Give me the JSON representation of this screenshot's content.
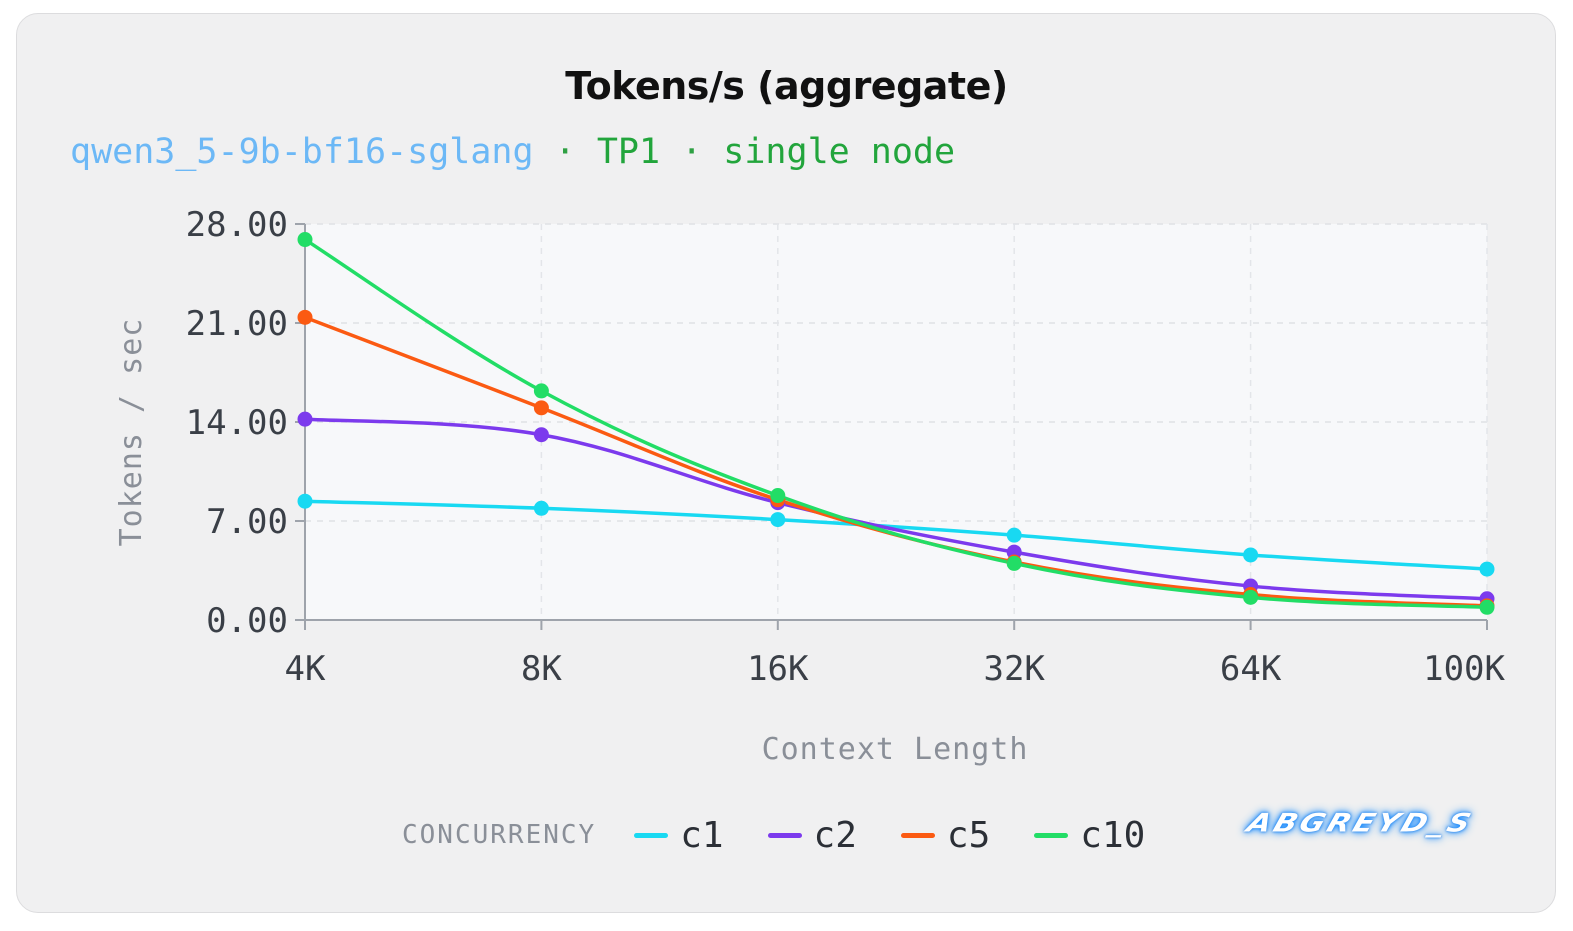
{
  "chart_data": {
    "type": "line",
    "title": "Tokens/s (aggregate)",
    "subtitle": {
      "model": "qwen3_5-9b-bf16-sglang",
      "separator": "·",
      "tp": "TP1",
      "node": "single node"
    },
    "xlabel": "Context Length",
    "ylabel": "Tokens / sec",
    "categories": [
      "4K",
      "8K",
      "16K",
      "32K",
      "64K",
      "100K"
    ],
    "yticks": [
      "0.00",
      "7.00",
      "14.00",
      "21.00",
      "28.00"
    ],
    "ylim": [
      0,
      28
    ],
    "grid": true,
    "legend_title": "CONCURRENCY",
    "legend_position": "bottom",
    "series": [
      {
        "name": "c1",
        "color": "#18d9f2",
        "values": [
          8.4,
          7.9,
          7.1,
          6.0,
          4.6,
          3.6
        ]
      },
      {
        "name": "c2",
        "color": "#7c3aed",
        "values": [
          14.2,
          13.1,
          8.3,
          4.8,
          2.4,
          1.5
        ]
      },
      {
        "name": "c5",
        "color": "#fb5a12",
        "values": [
          21.4,
          15.0,
          8.5,
          4.1,
          1.8,
          1.0
        ]
      },
      {
        "name": "c10",
        "color": "#22dd66",
        "values": [
          26.9,
          16.2,
          8.8,
          4.0,
          1.6,
          0.9
        ]
      }
    ]
  },
  "watermark": "ABGREYD_S"
}
